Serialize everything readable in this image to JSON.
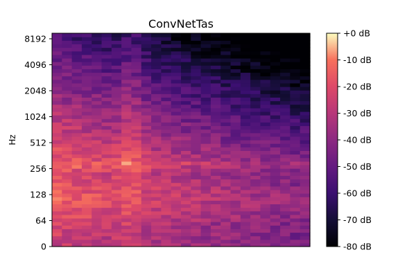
{
  "chart_data": {
    "type": "heatmap",
    "title": "ConvNetTas",
    "xlabel": "",
    "ylabel": "Hz",
    "y_scale": "symlog",
    "y_tick_labels": [
      "0",
      "64",
      "128",
      "256",
      "512",
      "1024",
      "2048",
      "4096",
      "8192"
    ],
    "y_tick_values": [
      0,
      64,
      128,
      256,
      512,
      1024,
      2048,
      4096,
      8192
    ],
    "y_max": 11025,
    "colorbar": {
      "tick_labels": [
        "+0 dB",
        "-10 dB",
        "-20 dB",
        "-30 dB",
        "-40 dB",
        "-50 dB",
        "-60 dB",
        "-70 dB",
        "-80 dB"
      ],
      "tick_values": [
        0,
        -10,
        -20,
        -30,
        -40,
        -50,
        -60,
        -70,
        -80
      ],
      "range": [
        -80,
        0
      ],
      "colormap": "magma"
    },
    "spectrogram": {
      "time_frames": 26,
      "freq_rows": 60,
      "description_levels_db": {
        "low_freq_early": -8,
        "low_freq_late": -55,
        "high_freq_early": -50,
        "high_freq_late": -80
      }
    }
  }
}
